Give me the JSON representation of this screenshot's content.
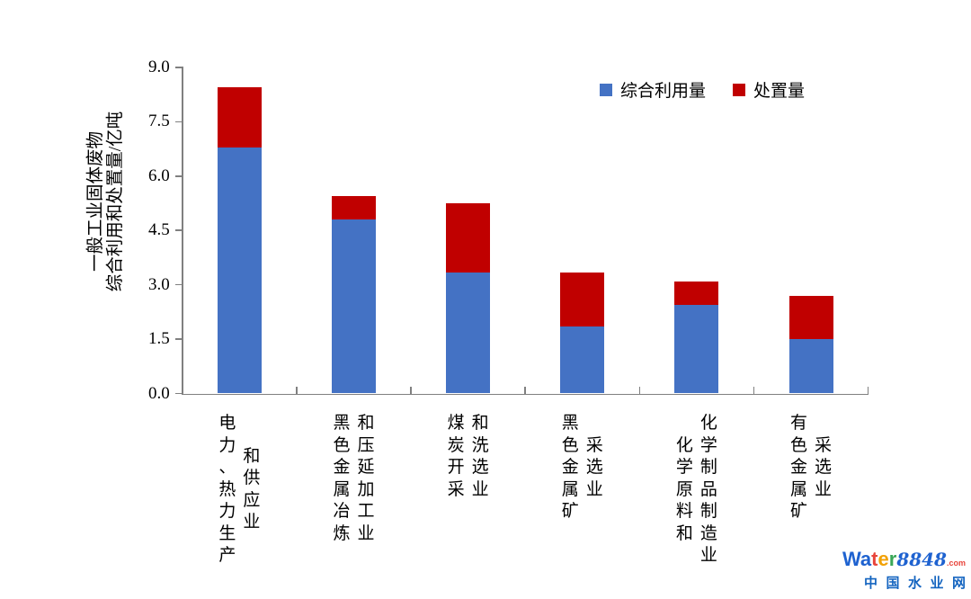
{
  "chart_data": {
    "type": "bar",
    "stacked": true,
    "orientation": "vertical",
    "title": "",
    "ylabel_lines": [
      "一般工业固体废物",
      "综合利用和处置量/亿吨"
    ],
    "ylabel": "一般工业固体废物综合利用和处置量/亿吨",
    "ylim": [
      0,
      9
    ],
    "yticks": [
      9.0,
      7.5,
      6.0,
      4.5,
      3.0,
      1.5,
      0.0
    ],
    "grid": false,
    "legend_position": "top-right-inside",
    "categories": [
      {
        "label": "电力、热力生产和供应业",
        "lines": [
          "电力、热力生产",
          "和供应业"
        ]
      },
      {
        "label": "黑色金属冶炼和压延加工业",
        "lines": [
          "黑色金属冶炼",
          "和压延加工业"
        ]
      },
      {
        "label": "煤炭开采和洗选业",
        "lines": [
          "煤炭开采",
          "和洗选业"
        ]
      },
      {
        "label": "黑色金属矿采选业",
        "lines": [
          "黑色金属矿",
          "采选业"
        ]
      },
      {
        "label": "化学原料和化学制品制造业",
        "lines": [
          "化学原料和",
          "化学制品制造业"
        ]
      },
      {
        "label": "有色金属矿采选业",
        "lines": [
          "有色金属矿",
          "采选业"
        ]
      }
    ],
    "series": [
      {
        "key": "utilization",
        "name": "综合利用量",
        "color": "#4472C4",
        "values": [
          6.8,
          4.8,
          3.35,
          1.85,
          2.45,
          1.5
        ]
      },
      {
        "key": "disposal",
        "name": "处置量",
        "color": "#C00000",
        "values": [
          1.65,
          0.65,
          1.9,
          1.5,
          0.65,
          1.2
        ]
      }
    ]
  },
  "axis": {
    "line_color": "#808080",
    "tick_label_color": "#000000"
  },
  "watermark": {
    "word_letters": [
      {
        "ch": "W",
        "color": "#1e62d0"
      },
      {
        "ch": "a",
        "color": "#1e62d0"
      },
      {
        "ch": "t",
        "color": "#e8453c"
      },
      {
        "ch": "e",
        "color": "#f2a104"
      },
      {
        "ch": "r",
        "color": "#3aa757"
      }
    ],
    "number": "8848",
    "number_color": "#1e62d0",
    "tld": ".com",
    "tld_color": "#e8453c",
    "tagline": "中国水业网",
    "tagline_color": "#1565c0"
  }
}
